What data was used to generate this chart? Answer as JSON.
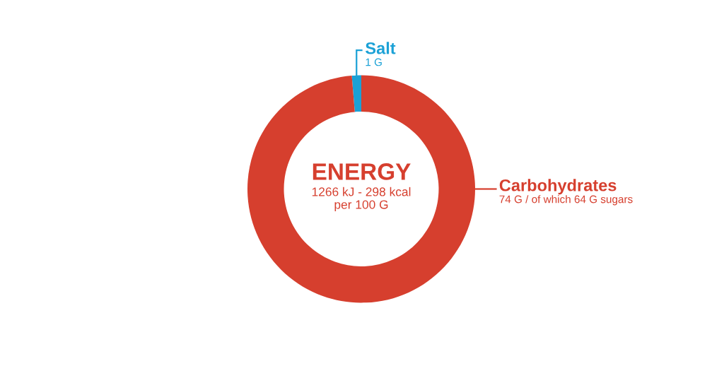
{
  "chart_data": {
    "type": "donut",
    "title": "ENERGY",
    "subtitle": "1266 kJ - 298 kcal\nper 100 G",
    "categories": [
      "Salt",
      "Carbohydrates"
    ],
    "values": [
      1,
      74
    ],
    "colors": [
      "#1ba1d6",
      "#d63f2e"
    ],
    "value_labels": [
      "1 G",
      "74 G / of which 64 G sugars"
    ]
  }
}
